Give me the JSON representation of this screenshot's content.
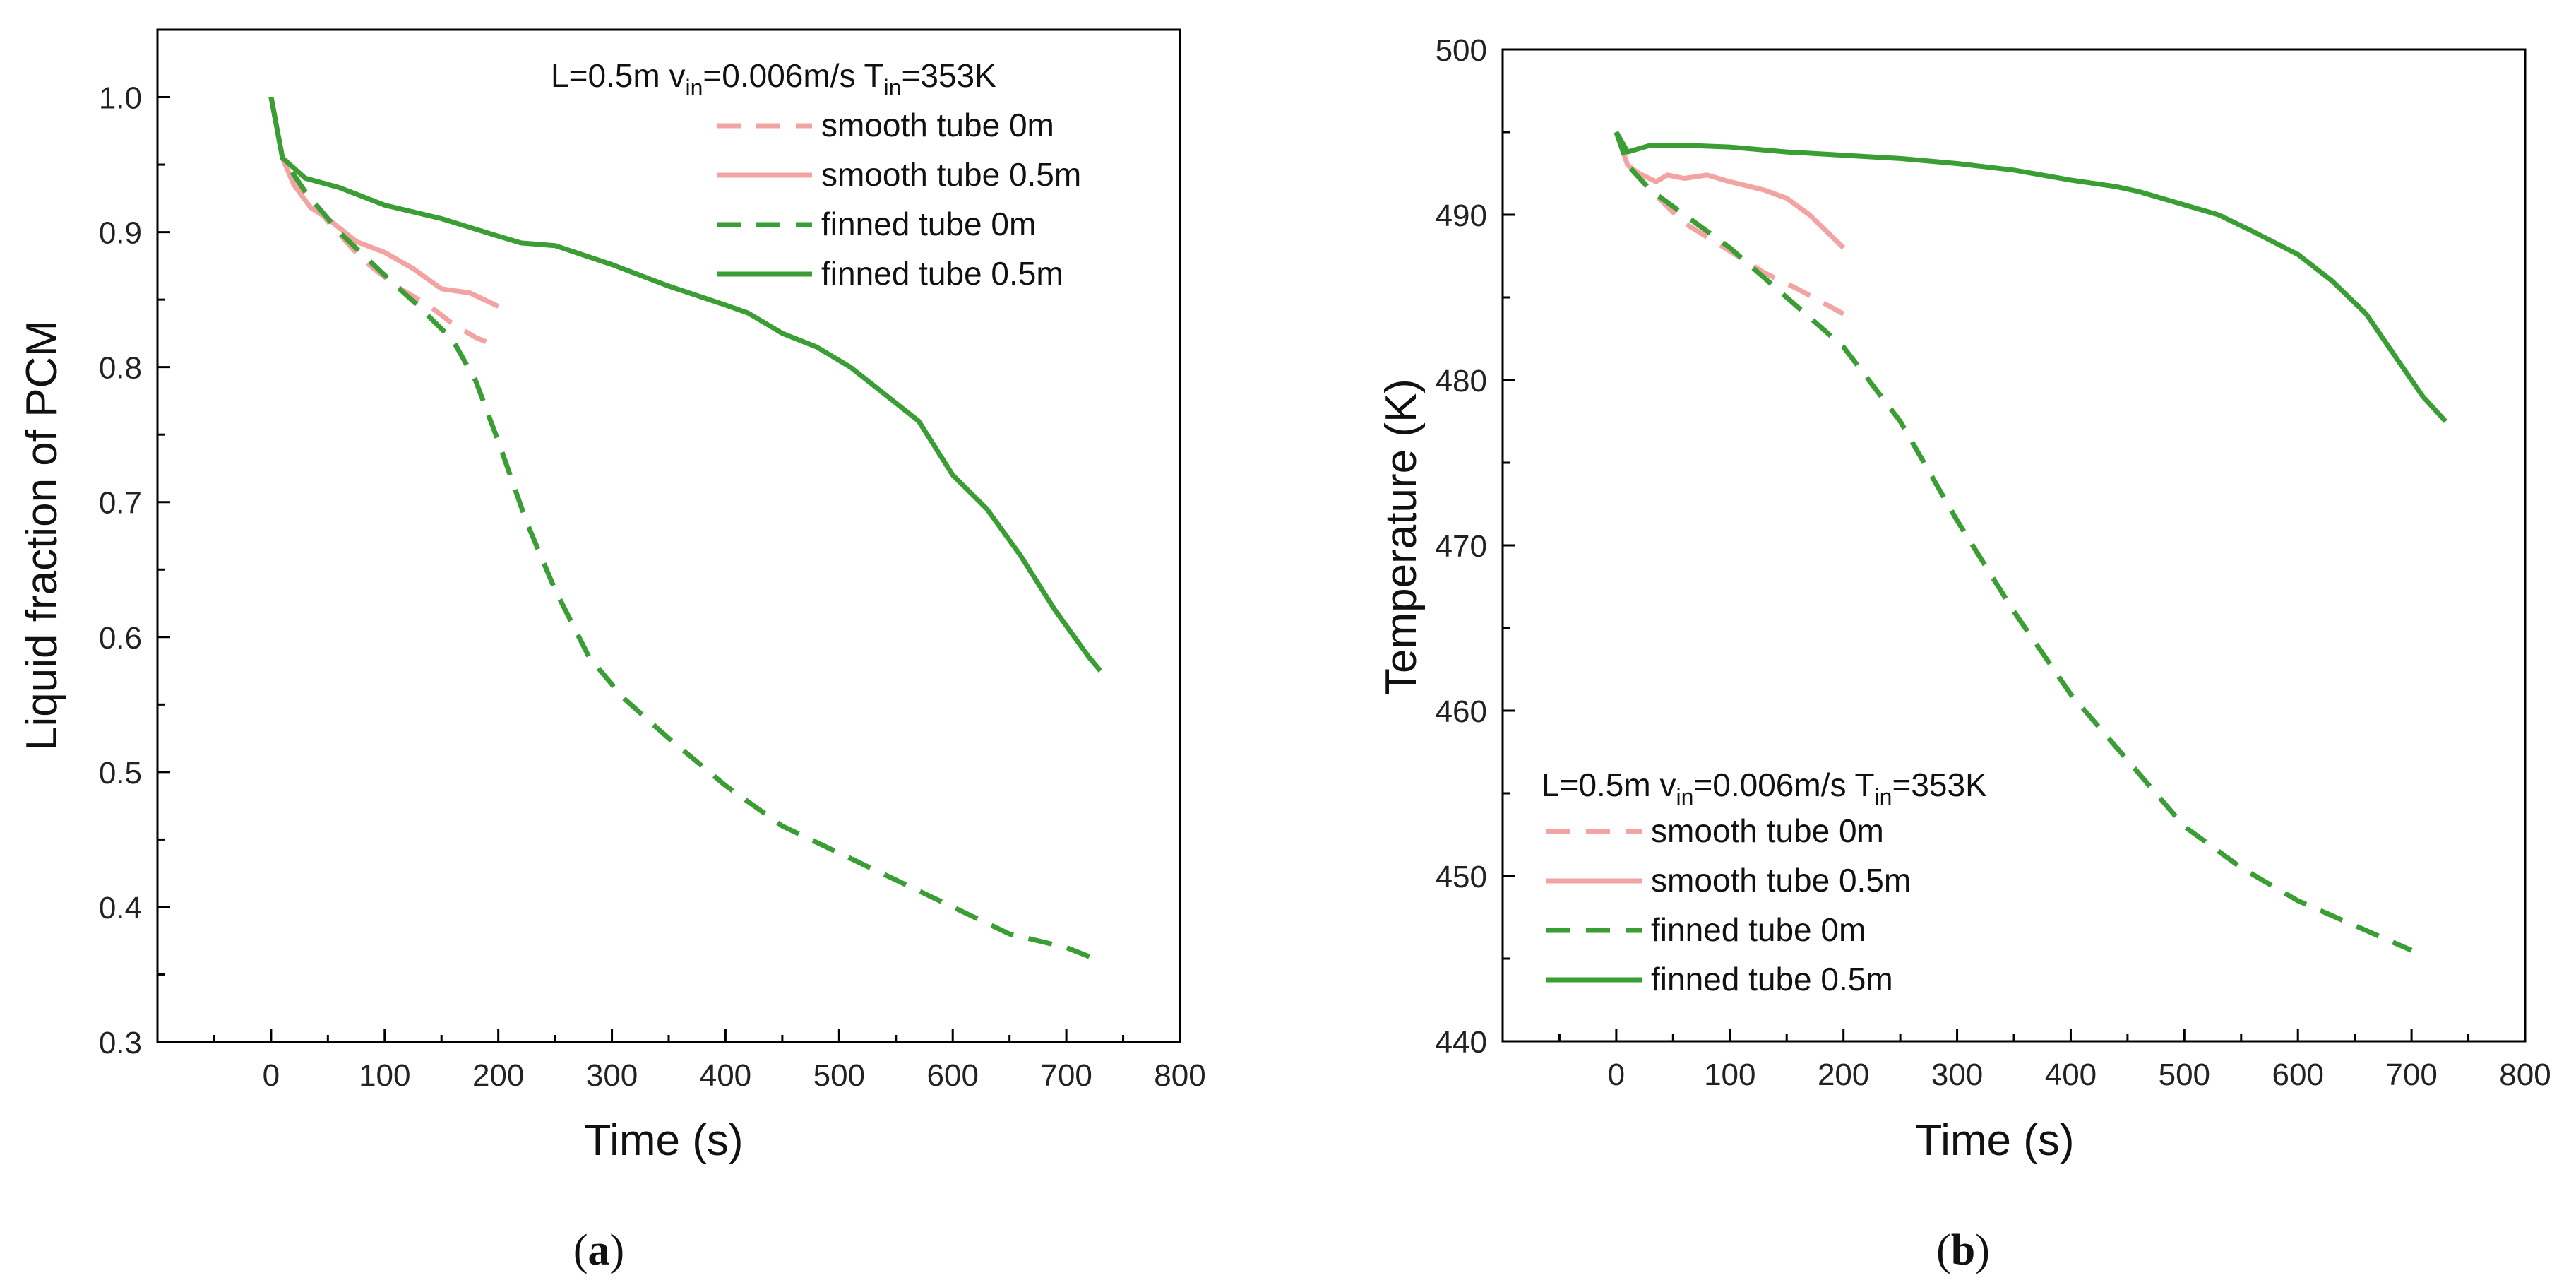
{
  "colors": {
    "smooth": "#F4A3A3",
    "finned": "#3A9E35",
    "axis": "#000000"
  },
  "chart_data": [
    {
      "id": "a",
      "type": "line",
      "caption": "(a)",
      "caption_letter": "a",
      "xlabel": "Time (s)",
      "ylabel": "Liquid fraction of PCM",
      "xlim": [
        -100,
        800
      ],
      "ylim": [
        0.3,
        1.05
      ],
      "xticks": [
        0,
        100,
        200,
        300,
        400,
        500,
        600,
        700,
        800
      ],
      "yticks": [
        0.3,
        0.4,
        0.5,
        0.6,
        0.7,
        0.8,
        0.9,
        1.0
      ],
      "ytick_labels": [
        "0.3",
        "0.4",
        "0.5",
        "0.6",
        "0.7",
        "0.8",
        "0.9",
        "1.0"
      ],
      "legend": {
        "position": "top-right",
        "condition": {
          "L": "L=0.5m",
          "v": "v",
          "v_sub": "in",
          "v_val": "=0.006m/s",
          "T": "T",
          "T_sub": "in",
          "T_val": "=353K"
        }
      },
      "series": [
        {
          "name": "smooth tube 0m",
          "style": "dashed",
          "color_key": "smooth",
          "x": [
            0,
            10,
            25,
            50,
            80,
            110,
            140,
            160,
            180,
            200
          ],
          "y": [
            1.0,
            0.955,
            0.935,
            0.908,
            0.88,
            0.86,
            0.845,
            0.832,
            0.822,
            0.815
          ]
        },
        {
          "name": "smooth tube 0.5m",
          "style": "solid",
          "color_key": "smooth",
          "x": [
            0,
            10,
            20,
            35,
            50,
            75,
            100,
            125,
            150,
            175,
            200
          ],
          "y": [
            1.0,
            0.955,
            0.935,
            0.918,
            0.91,
            0.893,
            0.885,
            0.873,
            0.858,
            0.855,
            0.845
          ]
        },
        {
          "name": "finned tube 0m",
          "style": "dashed",
          "color_key": "finned",
          "x": [
            0,
            10,
            30,
            60,
            100,
            130,
            160,
            180,
            200,
            225,
            250,
            280,
            310,
            350,
            400,
            450,
            500,
            550,
            600,
            650,
            700,
            730
          ],
          "y": [
            1.0,
            0.955,
            0.93,
            0.9,
            0.868,
            0.845,
            0.82,
            0.79,
            0.745,
            0.685,
            0.635,
            0.585,
            0.555,
            0.525,
            0.49,
            0.46,
            0.44,
            0.42,
            0.4,
            0.38,
            0.37,
            0.36
          ]
        },
        {
          "name": "finned tube 0.5m",
          "style": "solid",
          "color_key": "finned",
          "x": [
            0,
            10,
            30,
            60,
            100,
            150,
            200,
            220,
            250,
            300,
            350,
            400,
            420,
            450,
            480,
            510,
            540,
            570,
            600,
            630,
            660,
            690,
            720,
            730
          ],
          "y": [
            1.0,
            0.955,
            0.94,
            0.933,
            0.92,
            0.91,
            0.897,
            0.892,
            0.89,
            0.876,
            0.86,
            0.846,
            0.84,
            0.825,
            0.815,
            0.8,
            0.78,
            0.76,
            0.72,
            0.695,
            0.66,
            0.62,
            0.585,
            0.575
          ]
        }
      ]
    },
    {
      "id": "b",
      "type": "line",
      "caption": "(b)",
      "caption_letter": "b",
      "xlabel": "Time (s)",
      "ylabel": "Temperature (K)",
      "xlim": [
        -100,
        800
      ],
      "ylim": [
        440,
        500
      ],
      "xticks": [
        0,
        100,
        200,
        300,
        400,
        500,
        600,
        700,
        800
      ],
      "yticks": [
        440,
        450,
        460,
        470,
        480,
        490,
        500
      ],
      "ytick_labels": [
        "440",
        "450",
        "460",
        "470",
        "480",
        "490",
        "500"
      ],
      "legend": {
        "position": "bottom-left",
        "condition": {
          "L": "L=0.5m",
          "v": "v",
          "v_sub": "in",
          "v_val": "=0.006m/s",
          "T": "T",
          "T_sub": "in",
          "T_val": "=353K"
        }
      },
      "series": [
        {
          "name": "smooth tube 0m",
          "style": "dashed",
          "color_key": "smooth",
          "x": [
            0,
            10,
            30,
            60,
            100,
            130,
            160,
            200
          ],
          "y": [
            495,
            493,
            491.5,
            489.5,
            487.8,
            486.5,
            485.5,
            484
          ]
        },
        {
          "name": "smooth tube 0.5m",
          "style": "solid",
          "color_key": "smooth",
          "x": [
            0,
            10,
            20,
            35,
            45,
            60,
            80,
            100,
            130,
            150,
            170,
            185,
            200
          ],
          "y": [
            495,
            493,
            492.5,
            492,
            492.4,
            492.2,
            492.4,
            492,
            491.5,
            491,
            490,
            489,
            488
          ]
        },
        {
          "name": "finned tube 0m",
          "style": "dashed",
          "color_key": "finned",
          "x": [
            0,
            10,
            30,
            60,
            100,
            150,
            200,
            250,
            300,
            350,
            400,
            450,
            500,
            550,
            600,
            650,
            700
          ],
          "y": [
            495,
            493,
            491.5,
            490,
            488,
            485,
            482,
            477.5,
            471.5,
            466,
            461,
            457,
            453,
            450.5,
            448.5,
            447,
            445.5
          ]
        },
        {
          "name": "finned tube 0.5m",
          "style": "solid",
          "color_key": "finned",
          "x": [
            0,
            10,
            30,
            60,
            100,
            150,
            200,
            250,
            300,
            350,
            400,
            440,
            460,
            500,
            530,
            560,
            600,
            630,
            660,
            690,
            710,
            730
          ],
          "y": [
            495,
            493.8,
            494.2,
            494.2,
            494.1,
            493.8,
            493.6,
            493.4,
            493.1,
            492.7,
            492.1,
            491.7,
            491.4,
            490.6,
            490,
            489,
            487.6,
            486,
            484,
            481,
            479,
            477.5
          ]
        }
      ]
    }
  ]
}
